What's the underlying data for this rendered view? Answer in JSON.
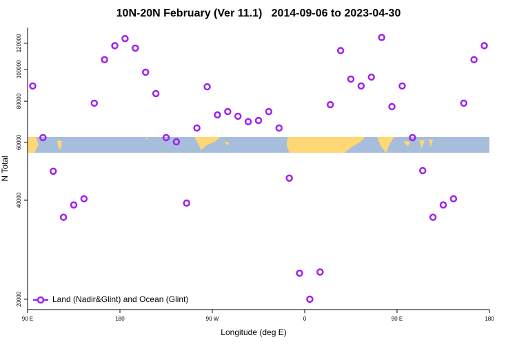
{
  "chart_data": {
    "type": "scatter",
    "title": "10N-20N February (Ver 11.1)   2014-09-06 to 2023-04-30",
    "x_label": "Longitude (deg E)",
    "y_label": "N Total",
    "x": [
      95,
      105,
      115,
      125,
      135,
      145,
      155,
      165,
      175,
      185,
      195,
      205,
      215,
      225,
      235,
      245,
      255,
      265,
      275,
      285,
      295,
      305,
      315,
      325,
      335,
      345,
      355,
      365,
      375,
      385,
      395,
      405,
      415,
      425,
      435,
      445,
      455,
      465,
      475,
      485,
      495,
      505,
      515,
      525,
      535
    ],
    "series": [
      {
        "name": "Land (Nadir&Glint) and Ocean (Glint)",
        "color": "#a020f0",
        "values": [
          89000,
          62000,
          49000,
          35500,
          38700,
          40400,
          78900,
          107000,
          118000,
          124000,
          116000,
          98000,
          84400,
          62000,
          60200,
          39200,
          66300,
          88500,
          72700,
          74400,
          72000,
          69300,
          69900,
          74400,
          66300,
          46700,
          24000,
          20000,
          24200,
          78100,
          114000,
          93400,
          89000,
          94700,
          125000,
          77000,
          89000,
          62000,
          49200,
          35500,
          38700,
          40400,
          78900,
          107000,
          118000
        ]
      }
    ],
    "xlim": [
      90,
      540
    ],
    "xticks": [
      {
        "value": 90,
        "label": "90 E"
      },
      180,
      {
        "value": 270,
        "label": "90 W"
      },
      {
        "value": 360,
        "label": "0"
      },
      {
        "value": 450,
        "label": "90 E"
      },
      {
        "value": 540,
        "label": "180"
      }
    ],
    "ylim": [
      18600,
      134000
    ],
    "yscale": "log",
    "yticks": [
      20000,
      40000,
      60000,
      80000,
      100000,
      120000
    ],
    "legend": "bottom-left"
  }
}
